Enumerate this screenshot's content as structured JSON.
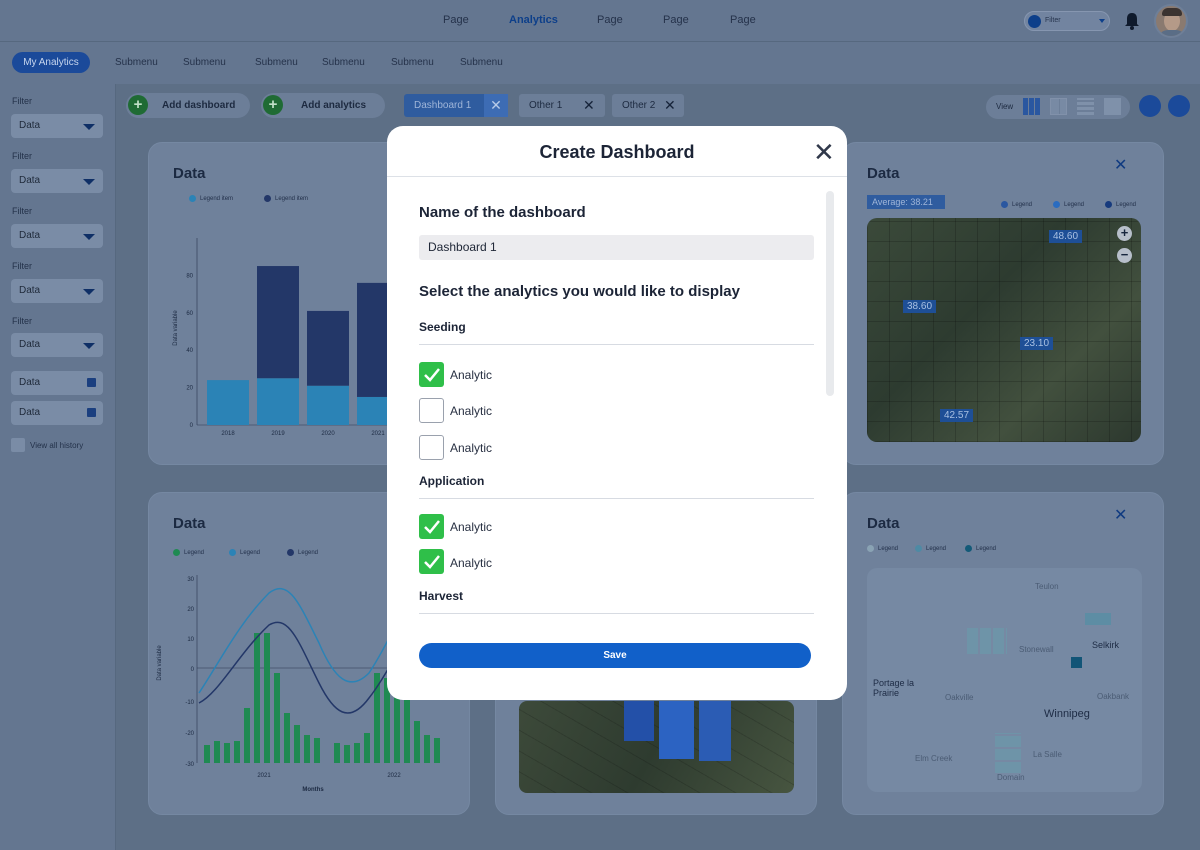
{
  "topnav": {
    "items": [
      "Page",
      "Analytics",
      "Page",
      "Page",
      "Page"
    ],
    "filter_label": "Filter"
  },
  "subnav": {
    "main": "My Analytics",
    "items": [
      "Submenu",
      "Submenu",
      "Submenu",
      "Submenu",
      "Submenu",
      "Submenu"
    ]
  },
  "sidebar": {
    "filters": [
      {
        "label": "Filter",
        "value": "Data"
      },
      {
        "label": "Filter",
        "value": "Data"
      },
      {
        "label": "Filter",
        "value": "Data"
      },
      {
        "label": "Filter",
        "value": "Data"
      },
      {
        "label": "Filter",
        "value": "Data"
      }
    ],
    "dates": [
      "Data",
      "Data"
    ],
    "history_label": "View all history"
  },
  "actions": {
    "add_dashboard": "Add dashboard",
    "add_analytics": "Add analytics"
  },
  "tabs": [
    "Dashboard 1",
    "Other 1",
    "Other 2"
  ],
  "view_label": "View",
  "cards": {
    "bar": {
      "title": "Data",
      "legend": [
        "Legend item",
        "Legend item"
      ],
      "ylabel": "Data variable",
      "yticks": [
        "0",
        "20",
        "40",
        "60",
        "80"
      ],
      "xticks": [
        "2018",
        "2019",
        "2020",
        "2021"
      ]
    },
    "map1": {
      "title": "Data",
      "avg_label": "Average:",
      "avg_value": "38.21",
      "legend": [
        "Legend",
        "Legend",
        "Legend"
      ],
      "values": [
        "48.60",
        "38.60",
        "23.10",
        "42.57"
      ]
    },
    "line": {
      "title": "Data",
      "legend": [
        "Legend",
        "Legend",
        "Legend"
      ],
      "ylabel": "Data variable",
      "xlabel": "Months",
      "yticks": [
        "30",
        "20",
        "10",
        "0",
        "-10",
        "-20",
        "-30"
      ],
      "xticks": [
        "2021",
        "2022"
      ]
    },
    "map2": {
      "title": "Data",
      "legend": [
        "Legend",
        "Legend",
        "Legend"
      ],
      "places": [
        "Teulon",
        "Stonewall",
        "Selkirk",
        "Portage la Prairie",
        "Oakville",
        "Oakbank",
        "Winnipeg",
        "La Salle",
        "Elm Creek",
        "Domain"
      ]
    }
  },
  "chart_data": [
    {
      "type": "bar",
      "categories": [
        "2018",
        "2019",
        "2020",
        "2021"
      ],
      "series": [
        {
          "name": "Legend item",
          "values": [
            24,
            25,
            21,
            15
          ]
        },
        {
          "name": "Legend item",
          "values": [
            0,
            60,
            40,
            61
          ]
        }
      ],
      "ylabel": "Data variable",
      "ylim": [
        0,
        100
      ]
    }
  ],
  "modal": {
    "title": "Create Dashboard",
    "name_label": "Name of the dashboard",
    "name_value": "Dashboard 1",
    "select_label": "Select the analytics you would like to display",
    "groups": [
      {
        "name": "Seeding",
        "items": [
          {
            "label": "Analytic",
            "checked": true
          },
          {
            "label": "Analytic",
            "checked": false
          },
          {
            "label": "Analytic",
            "checked": false
          }
        ]
      },
      {
        "name": "Application",
        "items": [
          {
            "label": "Analytic",
            "checked": true
          },
          {
            "label": "Analytic",
            "checked": true
          }
        ]
      },
      {
        "name": "Harvest",
        "items": []
      }
    ],
    "save_label": "Save"
  },
  "colors": {
    "accent": "#1160c9",
    "check": "#2fbf49",
    "primary_dark": "#1b4a9a"
  }
}
